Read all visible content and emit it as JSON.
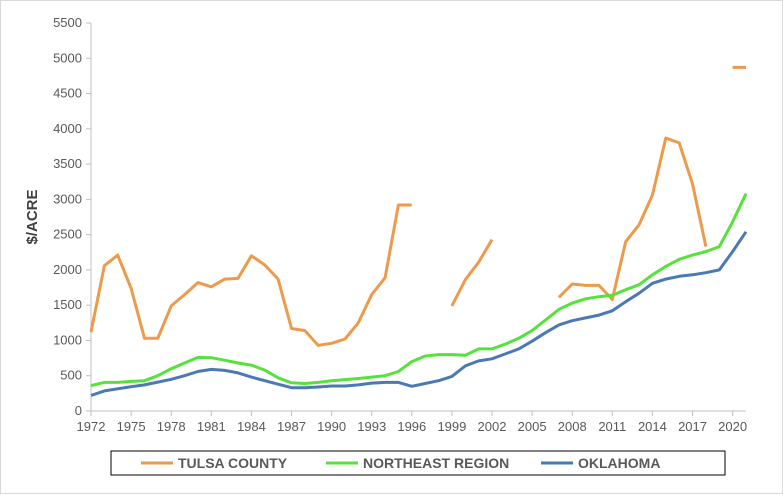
{
  "chart_data": {
    "type": "line",
    "title": "",
    "xlabel": "",
    "ylabel": "$/ACRE",
    "ylim": [
      0,
      5500
    ],
    "xlim": [
      1972,
      2021
    ],
    "y_ticks": [
      0,
      500,
      1000,
      1500,
      2000,
      2500,
      3000,
      3500,
      4000,
      4500,
      5000,
      5500
    ],
    "x_ticks": [
      1972,
      1975,
      1978,
      1981,
      1984,
      1987,
      1990,
      1993,
      1996,
      1999,
      2002,
      2005,
      2008,
      2011,
      2014,
      2017,
      2020
    ],
    "grid": false,
    "legend_position": "bottom",
    "series": [
      {
        "name": "TULSA COUNTY",
        "color": "#ED9A4A",
        "points": [
          [
            1972,
            1120
          ],
          [
            1973,
            2060
          ],
          [
            1974,
            2210
          ],
          [
            1975,
            1740
          ],
          [
            1976,
            1030
          ],
          [
            1977,
            1030
          ],
          [
            1978,
            1490
          ],
          [
            1979,
            1650
          ],
          [
            1980,
            1820
          ],
          [
            1981,
            1760
          ],
          [
            1982,
            1870
          ],
          [
            1983,
            1880
          ],
          [
            1984,
            2200
          ],
          [
            1985,
            2070
          ],
          [
            1986,
            1870
          ],
          [
            1987,
            1170
          ],
          [
            1988,
            1140
          ],
          [
            1989,
            930
          ],
          [
            1990,
            960
          ],
          [
            1991,
            1020
          ],
          [
            1992,
            1250
          ],
          [
            1993,
            1650
          ],
          [
            1994,
            1890
          ],
          [
            1995,
            2920
          ],
          [
            1996,
            2920
          ],
          null,
          [
            1999,
            1490
          ],
          [
            2000,
            1860
          ],
          [
            2001,
            2110
          ],
          [
            2002,
            2430
          ],
          null,
          [
            2007,
            1610
          ],
          [
            2008,
            1800
          ],
          [
            2009,
            1780
          ],
          [
            2010,
            1780
          ],
          [
            2011,
            1580
          ],
          [
            2012,
            2400
          ],
          [
            2013,
            2640
          ],
          [
            2014,
            3060
          ],
          [
            2015,
            3870
          ],
          [
            2016,
            3800
          ],
          [
            2017,
            3220
          ],
          [
            2018,
            2330
          ],
          null,
          [
            2020,
            4870
          ],
          [
            2021,
            4870
          ]
        ]
      },
      {
        "name": "NORTHEAST REGION",
        "color": "#55E23B",
        "points": [
          [
            1972,
            360
          ],
          [
            1973,
            405
          ],
          [
            1974,
            405
          ],
          [
            1975,
            420
          ],
          [
            1976,
            430
          ],
          [
            1977,
            500
          ],
          [
            1978,
            600
          ],
          [
            1979,
            680
          ],
          [
            1980,
            760
          ],
          [
            1981,
            755
          ],
          [
            1982,
            720
          ],
          [
            1983,
            680
          ],
          [
            1984,
            650
          ],
          [
            1985,
            580
          ],
          [
            1986,
            470
          ],
          [
            1987,
            400
          ],
          [
            1988,
            390
          ],
          [
            1989,
            405
          ],
          [
            1990,
            430
          ],
          [
            1991,
            445
          ],
          [
            1992,
            460
          ],
          [
            1993,
            480
          ],
          [
            1994,
            500
          ],
          [
            1995,
            560
          ],
          [
            1996,
            700
          ],
          [
            1997,
            780
          ],
          [
            1998,
            800
          ],
          [
            1999,
            800
          ],
          [
            2000,
            790
          ],
          [
            2001,
            880
          ],
          [
            2002,
            880
          ],
          [
            2003,
            950
          ],
          [
            2004,
            1030
          ],
          [
            2005,
            1140
          ],
          [
            2006,
            1290
          ],
          [
            2007,
            1440
          ],
          [
            2008,
            1530
          ],
          [
            2009,
            1590
          ],
          [
            2010,
            1620
          ],
          [
            2011,
            1640
          ],
          [
            2012,
            1720
          ],
          [
            2013,
            1790
          ],
          [
            2014,
            1930
          ],
          [
            2015,
            2050
          ],
          [
            2016,
            2150
          ],
          [
            2017,
            2210
          ],
          [
            2018,
            2260
          ],
          [
            2019,
            2330
          ],
          [
            2020,
            2680
          ],
          [
            2021,
            3080
          ]
        ]
      },
      {
        "name": "OKLAHOMA",
        "color": "#4A79B6",
        "points": [
          [
            1972,
            220
          ],
          [
            1973,
            285
          ],
          [
            1974,
            315
          ],
          [
            1975,
            345
          ],
          [
            1976,
            370
          ],
          [
            1977,
            410
          ],
          [
            1978,
            450
          ],
          [
            1979,
            500
          ],
          [
            1980,
            560
          ],
          [
            1981,
            590
          ],
          [
            1982,
            575
          ],
          [
            1983,
            540
          ],
          [
            1984,
            480
          ],
          [
            1985,
            430
          ],
          [
            1986,
            380
          ],
          [
            1987,
            330
          ],
          [
            1988,
            330
          ],
          [
            1989,
            340
          ],
          [
            1990,
            355
          ],
          [
            1991,
            355
          ],
          [
            1992,
            370
          ],
          [
            1993,
            395
          ],
          [
            1994,
            405
          ],
          [
            1995,
            405
          ],
          [
            1996,
            350
          ],
          [
            1997,
            390
          ],
          [
            1998,
            430
          ],
          [
            1999,
            490
          ],
          [
            2000,
            640
          ],
          [
            2001,
            710
          ],
          [
            2002,
            740
          ],
          [
            2003,
            810
          ],
          [
            2004,
            880
          ],
          [
            2005,
            990
          ],
          [
            2006,
            1110
          ],
          [
            2007,
            1220
          ],
          [
            2008,
            1280
          ],
          [
            2009,
            1320
          ],
          [
            2010,
            1360
          ],
          [
            2011,
            1420
          ],
          [
            2012,
            1550
          ],
          [
            2013,
            1670
          ],
          [
            2014,
            1810
          ],
          [
            2015,
            1870
          ],
          [
            2016,
            1910
          ],
          [
            2017,
            1930
          ],
          [
            2018,
            1960
          ],
          [
            2019,
            2000
          ],
          [
            2020,
            2260
          ],
          [
            2021,
            2540
          ]
        ]
      }
    ]
  }
}
